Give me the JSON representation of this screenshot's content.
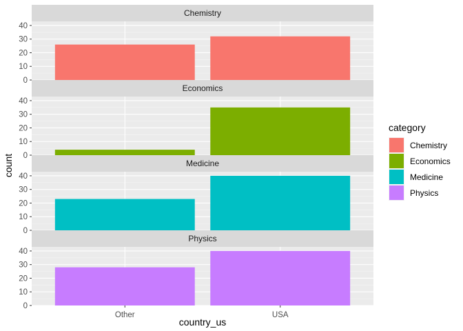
{
  "chart_data": {
    "type": "bar",
    "facet_by": "category",
    "categories": [
      "Other",
      "USA"
    ],
    "xlabel": "country_us",
    "ylabel": "count",
    "ylim": [
      0,
      43
    ],
    "yticks": [
      0,
      10,
      20,
      30,
      40
    ],
    "grid": true,
    "legend": {
      "title": "category",
      "position": "right",
      "entries": [
        "Chemistry",
        "Economics",
        "Medicine",
        "Physics"
      ]
    },
    "panels": [
      {
        "name": "Chemistry",
        "color": "#F8766D",
        "values": [
          26,
          32
        ]
      },
      {
        "name": "Economics",
        "color": "#7CAE00",
        "values": [
          4,
          35
        ]
      },
      {
        "name": "Medicine",
        "color": "#00BFC4",
        "values": [
          23,
          40
        ]
      },
      {
        "name": "Physics",
        "color": "#C77CFF",
        "values": [
          28,
          40
        ]
      }
    ],
    "colors": {
      "panel_background": "#EBEBEB",
      "strip_background": "#D9D9D9",
      "grid_major": "#FFFFFF",
      "grid_minor": "#F5F5F5",
      "tick_text": "#4D4D4D",
      "strip_text": "#1A1A1A",
      "axis_title": "#000000"
    }
  }
}
